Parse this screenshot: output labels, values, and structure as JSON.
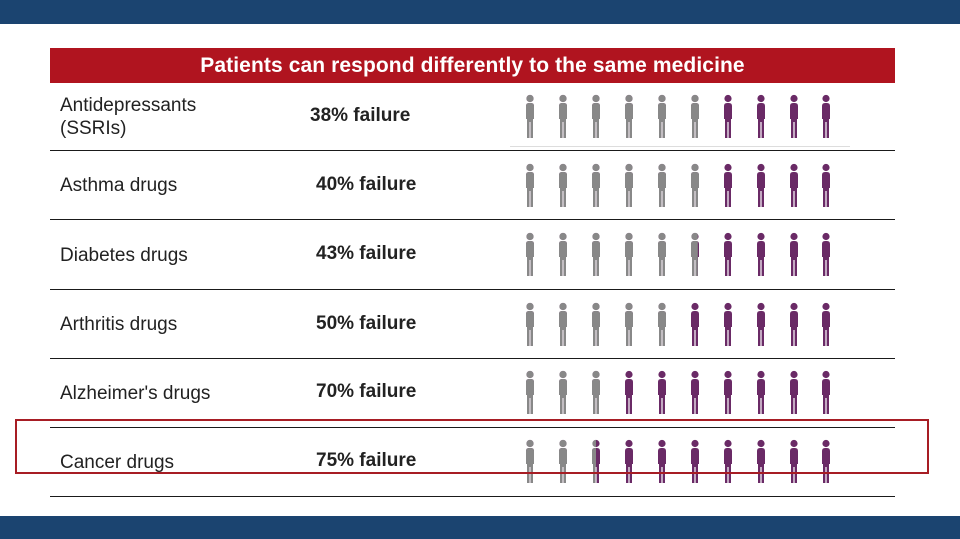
{
  "header": {
    "title": "Patients can respond differently to the same medicine"
  },
  "colors": {
    "success": "#888888",
    "failure": "#6a2a66",
    "header_bg": "#b0141f",
    "frame": "#1b4470",
    "highlight": "#a71d24"
  },
  "chart_data": {
    "type": "table",
    "title": "Patients can respond differently to the same medicine",
    "icon_count": 10,
    "rows": [
      {
        "drug": "Antidepressants\n(SSRIs)",
        "failure_label": "38% failure",
        "failure_pct": 38,
        "failure_icons": 3.8
      },
      {
        "drug": "Asthma drugs",
        "failure_label": "40% failure",
        "failure_pct": 40,
        "failure_icons": 4
      },
      {
        "drug": "Diabetes drugs",
        "failure_label": "43% failure",
        "failure_pct": 43,
        "failure_icons": 4.3
      },
      {
        "drug": "Arthritis drugs",
        "failure_label": "50% failure",
        "failure_pct": 50,
        "failure_icons": 5
      },
      {
        "drug": "Alzheimer's drugs",
        "failure_label": "70% failure",
        "failure_pct": 70,
        "failure_icons": 7
      },
      {
        "drug": "Cancer drugs",
        "failure_label": "75% failure",
        "failure_pct": 75,
        "failure_icons": 7.5
      }
    ],
    "highlighted_row": "Cancer drugs"
  }
}
